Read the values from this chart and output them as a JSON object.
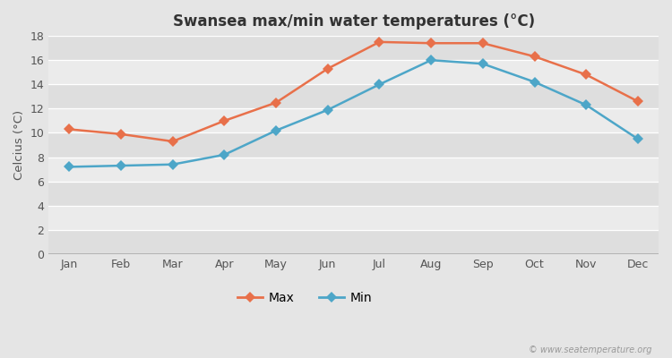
{
  "title": "Swansea max/min water temperatures (°C)",
  "ylabel": "Celcius (°C)",
  "months": [
    "Jan",
    "Feb",
    "Mar",
    "Apr",
    "May",
    "Jun",
    "Jul",
    "Aug",
    "Sep",
    "Oct",
    "Nov",
    "Dec"
  ],
  "max_temps": [
    10.3,
    9.9,
    9.3,
    11.0,
    12.5,
    15.3,
    17.5,
    17.4,
    17.4,
    16.3,
    14.8,
    12.6
  ],
  "min_temps": [
    7.2,
    7.3,
    7.4,
    8.2,
    10.2,
    11.9,
    14.0,
    16.0,
    15.7,
    14.2,
    12.3,
    9.5
  ],
  "max_color": "#e8704a",
  "min_color": "#4da6c8",
  "figure_bg": "#e5e5e5",
  "band_light": "#ebebeb",
  "band_dark": "#dedede",
  "ylim": [
    0,
    18
  ],
  "yticks": [
    0,
    2,
    4,
    6,
    8,
    10,
    12,
    14,
    16,
    18
  ],
  "watermark": "© www.seatemperature.org",
  "legend_max": "Max",
  "legend_min": "Min",
  "title_fontsize": 12,
  "label_fontsize": 9.5,
  "tick_fontsize": 9,
  "legend_fontsize": 10,
  "marker_size": 6,
  "line_width": 1.8
}
